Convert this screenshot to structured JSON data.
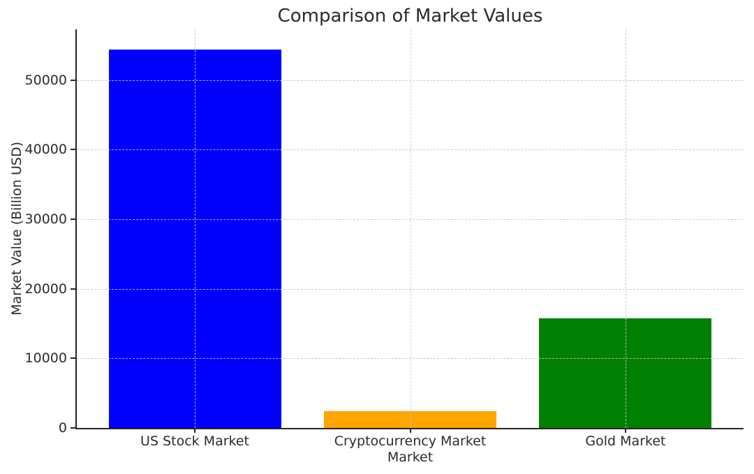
{
  "chart_data": {
    "type": "bar",
    "title": "Comparison of Market Values",
    "xlabel": "Market",
    "ylabel": "Market Value (Billion USD)",
    "categories": [
      "US Stock Market",
      "Cryptocurrency Market",
      "Gold Market"
    ],
    "values": [
      54400,
      2400,
      15800
    ],
    "bar_colors": [
      "#0000ff",
      "#ffa500",
      "#008000"
    ],
    "yticks": [
      0,
      10000,
      20000,
      30000,
      40000,
      50000
    ],
    "ylim": [
      0,
      57300
    ],
    "grid": "dashed-both-axes",
    "legend": "none",
    "background_color": "#ffffff",
    "text_color": "#2b2b2b"
  }
}
